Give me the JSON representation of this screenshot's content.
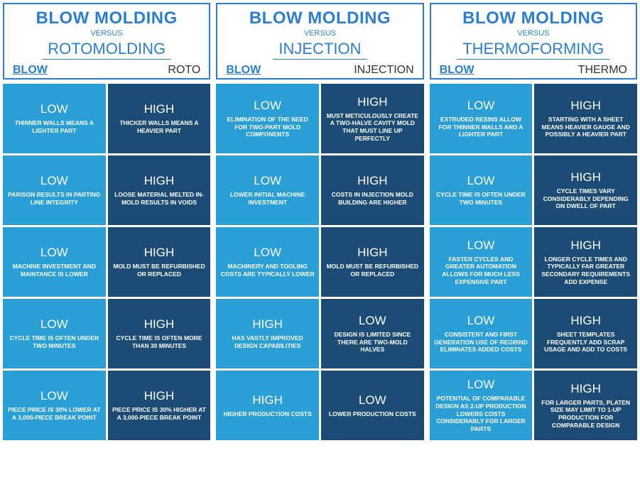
{
  "colors": {
    "brand_blue": "#2a7fd4",
    "light_cell": "#2a9fd6",
    "dark_cell": "#1c4b75"
  },
  "panels": [
    {
      "title": "BLOW MOLDING",
      "versus": "VERSUS",
      "alt": "ROTOMOLDING",
      "col_left": "BLOW",
      "col_right": "ROTO",
      "rows": [
        {
          "left": {
            "level": "LOW",
            "desc": "THINNER WALLS MEANS A LIGHTER PART"
          },
          "right": {
            "level": "HIGH",
            "desc": "THICKER WALLS MEANS A HEAVIER PART"
          }
        },
        {
          "left": {
            "level": "LOW",
            "desc": "PARISON RESULTS IN PARTING LINE INTEGRITY"
          },
          "right": {
            "level": "HIGH",
            "desc": "LOOSE MATERIAL MELTED IN-MOLD RESULTS IN VOIDS"
          }
        },
        {
          "left": {
            "level": "LOW",
            "desc": "MACHINE INVESTMENT AND MAINTANCE IS LOWER"
          },
          "right": {
            "level": "HIGH",
            "desc": "MOLD MUST BE REFURBISHED OR REPLACED"
          }
        },
        {
          "left": {
            "level": "LOW",
            "desc": "CYCLE TIME IS OFTEN UNDER TWO MINUTES"
          },
          "right": {
            "level": "HIGH",
            "desc": "CYCLE TIME IS OFTEN MORE THAN 30 MINUTES"
          }
        },
        {
          "left": {
            "level": "LOW",
            "desc": "PIECE PRICE IS 30% LOWER AT A 3,000-PIECE BREAK POINT"
          },
          "right": {
            "level": "HIGH",
            "desc": "PIECE PRICE IS 30% HIGHER AT A 3,000-PIECE BREAK POINT"
          }
        }
      ]
    },
    {
      "title": "BLOW MOLDING",
      "versus": "VERSUS",
      "alt": "INJECTION",
      "col_left": "BLOW",
      "col_right": "INJECTION",
      "rows": [
        {
          "left": {
            "level": "LOW",
            "desc": "ELIMINATION OF THE NEED FOR TWO-PART MOLD COMPONENTS"
          },
          "right": {
            "level": "HIGH",
            "desc": "MUST METICULOUSLY CREATE A TWO-HALVE CAVITY MOLD THAT MUST LINE UP PERFECTLY"
          }
        },
        {
          "left": {
            "level": "LOW",
            "desc": "LOWER INITIAL MACHINE INVESTMENT"
          },
          "right": {
            "level": "HIGH",
            "desc": "COSTS IN INJECTION MOLD BUILDING ARE HIGHER"
          }
        },
        {
          "left": {
            "level": "LOW",
            "desc": "MACHINERY AND TOOLING COSTS ARE TYPICALLY LOWER"
          },
          "right": {
            "level": "HIGH",
            "desc": "MOLD MUST BE REFURBISHED OR REPLACED"
          }
        },
        {
          "left": {
            "level": "HIGH",
            "desc": "HAS VASTLY IMPROVED DESIGN CAPABILITIES"
          },
          "right": {
            "level": "LOW",
            "desc": "DESIGN IS LIMITED SINCE THERE ARE TWO-MOLD HALVES"
          }
        },
        {
          "left": {
            "level": "HIGH",
            "desc": "HIGHER PRODUCTION COSTS"
          },
          "right": {
            "level": "LOW",
            "desc": "LOWER PRODUCTION COSTS"
          }
        }
      ]
    },
    {
      "title": "BLOW MOLDING",
      "versus": "VERSUS",
      "alt": "THERMOFORMING",
      "col_left": "BLOW",
      "col_right": "THERMO",
      "rows": [
        {
          "left": {
            "level": "LOW",
            "desc": "EXTRUDED RESINS ALLOW FOR THINNER WALLS AND A LIGHTER PART"
          },
          "right": {
            "level": "HIGH",
            "desc": "STARTING WITH A SHEET MEANS HEAVIER GAUGE AND POSSIBLY A HEAVIER PART"
          }
        },
        {
          "left": {
            "level": "LOW",
            "desc": "CYCLE TIME IS OFTEN UNDER TWO MINUTES"
          },
          "right": {
            "level": "HIGH",
            "desc": "CYCLE TIMES VARY CONSIDERABLY DEPENDING ON DWELL OF PART"
          }
        },
        {
          "left": {
            "level": "LOW",
            "desc": "FASTER CYCLES AND GREATER AUTOMATION ALLOWS FOR MUCH LESS EXPENSIVE PART"
          },
          "right": {
            "level": "HIGH",
            "desc": "LONGER CYCLE TIMES AND TYPICALLY FAR GREATER SECONDARY REQUIREMENTS ADD EXPENSE"
          }
        },
        {
          "left": {
            "level": "LOW",
            "desc": "CONSISTENT AND FIRST GENERATION USE OF REGRIND ELIMINATES ADDED COSTS"
          },
          "right": {
            "level": "HIGH",
            "desc": "SHEET TEMPLATES FREQUENTLY ADD SCRAP USAGE AND ADD TO COSTS"
          }
        },
        {
          "left": {
            "level": "LOW",
            "desc": "POTENTIAL OF COMPARABLE DESIGN AS 2-UP PRODUCTION LOWERS COSTS CONSIDERABLY FOR LARGER PARTS"
          },
          "right": {
            "level": "HIGH",
            "desc": "FOR LARGER PARTS, PLATEN SIZE MAY LIMIT TO 1-UP PRODUCTION FOR COMPARABLE DESIGN"
          }
        }
      ]
    }
  ]
}
